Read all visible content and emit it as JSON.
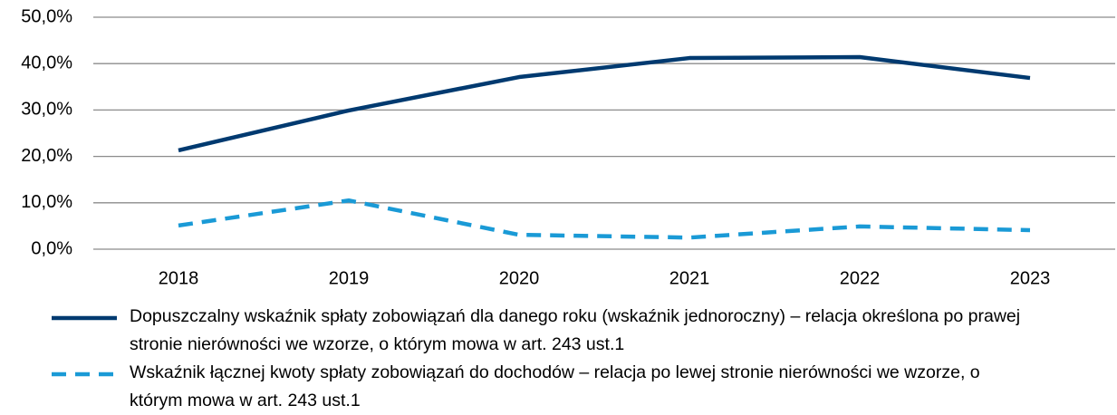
{
  "chart_data": {
    "type": "line",
    "categories": [
      "2018",
      "2019",
      "2020",
      "2021",
      "2022",
      "2023"
    ],
    "series": [
      {
        "name": "Dopuszczalny wskaźnik spłaty zobowiązań dla danego roku (wskaźnik jednoroczny) – relacja określona po prawej stronie nierówności we wzorze, o którym mowa w art. 243 ust.1",
        "color": "#003a70",
        "dash": false,
        "values": [
          21.3,
          29.9,
          37.1,
          41.2,
          41.4,
          36.9
        ]
      },
      {
        "name": "Wskaźnik łącznej kwoty spłaty zobowiązań do dochodów – relacja po lewej stronie nierówności we wzorze, o którym mowa w art. 243 ust.1",
        "color": "#1a9ad6",
        "dash": true,
        "values": [
          5.1,
          10.5,
          3.1,
          2.5,
          4.9,
          4.1
        ]
      }
    ],
    "ylim": [
      0,
      50
    ],
    "yticks": [
      {
        "value": 0,
        "label": "0,0%"
      },
      {
        "value": 10,
        "label": "10,0%"
      },
      {
        "value": 20,
        "label": "20,0%"
      },
      {
        "value": 30,
        "label": "30,0%"
      },
      {
        "value": 40,
        "label": "40,0%"
      },
      {
        "value": 50,
        "label": "50,0%"
      }
    ],
    "grid": true
  }
}
